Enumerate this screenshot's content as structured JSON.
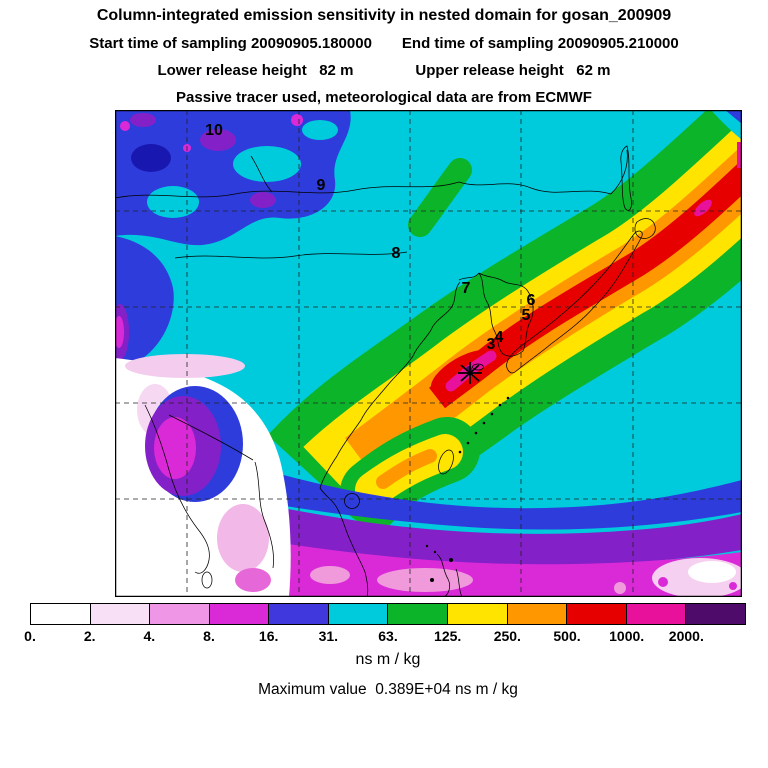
{
  "header": {
    "title": "Column-integrated emission sensitivity in nested domain for gosan_200909",
    "start_time": "Start time of sampling 20090905.180000",
    "end_time": "End time of sampling 20090905.210000",
    "lower_release": "Lower release height   82 m",
    "upper_release": "Upper release height   62 m",
    "tracer_line": "Passive tracer used, meteorological data are from ECMWF"
  },
  "map": {
    "day_labels": [
      "10",
      "9",
      "8",
      "7",
      "6",
      "5",
      "4",
      "3"
    ],
    "receptor_marker": "asterisk"
  },
  "colorbar": {
    "labels": [
      "0.",
      "2.",
      "4.",
      "8.",
      "16.",
      "31.",
      "63.",
      "125.",
      "250.",
      "500.",
      "1000.",
      "2000."
    ],
    "colors": [
      "#FFFFFF",
      "#F8E0F6",
      "#F096E6",
      "#DA2AD8",
      "#4038DC",
      "#00CBDD",
      "#0CB42A",
      "#FFE400",
      "#FF9800",
      "#E60000",
      "#E8119B",
      "#4E0B69"
    ],
    "units": "ns m / kg"
  },
  "footer": {
    "max_value": "Maximum value  0.389E+04 ns m / kg"
  },
  "chart_data": {
    "type": "heatmap",
    "title": "Column-integrated emission sensitivity in nested domain for gosan_200909",
    "field": "column-integrated emission sensitivity",
    "units": "ns m / kg",
    "levels": [
      0,
      2,
      4,
      8,
      16,
      31,
      63,
      125,
      250,
      500,
      1000,
      2000
    ],
    "palette": [
      "#FFFFFF",
      "#F8E0F6",
      "#F096E6",
      "#DA2AD8",
      "#4038DC",
      "#00CBDD",
      "#0CB42A",
      "#FFE400",
      "#FF9800",
      "#E60000",
      "#E8119B",
      "#4E0B69"
    ],
    "max_value_text": "0.389E+04",
    "max_value_numeric": 3890,
    "receptor_site": "gosan",
    "start_time": "20090905.180000",
    "end_time": "20090905.210000",
    "lower_release_height_m": 82,
    "upper_release_height_m": 62,
    "tracer": "Passive tracer",
    "meteorology": "ECMWF",
    "trajectory_day_labels": [
      10,
      9,
      8,
      7,
      6,
      5,
      4,
      3
    ],
    "legend_position": "bottom",
    "grid": "dashed lat/lon graticule"
  }
}
